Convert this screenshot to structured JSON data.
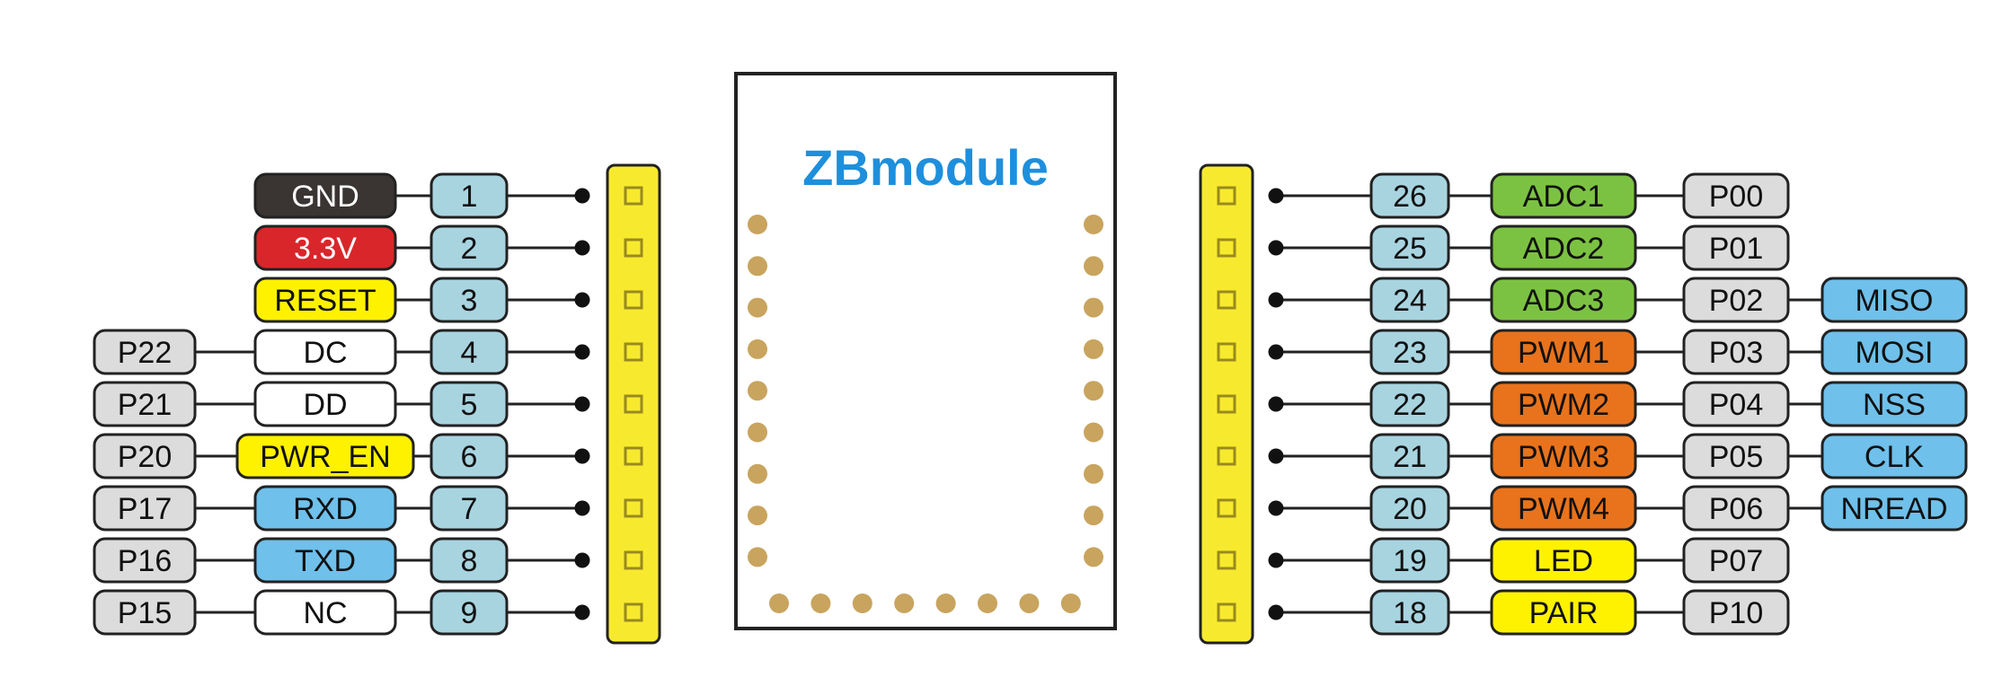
{
  "module": {
    "title": "ZBmodule",
    "title_color": "#1e8fdc"
  },
  "colors": {
    "gnd": "#3a3433",
    "power": "#d9262a",
    "yellow": "#fff200",
    "white": "#ffffff",
    "blue": "#6fc0ea",
    "pin": "#a8d4e0",
    "port": "#dcdcdc",
    "green": "#7cc242",
    "orange": "#e8731c",
    "pad": "#c8a45e",
    "header": "#f7ea2e"
  },
  "left_pins": [
    {
      "pin": "1",
      "func": "GND",
      "func_color": "gnd",
      "port": ""
    },
    {
      "pin": "2",
      "func": "3.3V",
      "func_color": "power",
      "port": ""
    },
    {
      "pin": "3",
      "func": "RESET",
      "func_color": "yellow",
      "port": ""
    },
    {
      "pin": "4",
      "func": "DC",
      "func_color": "white",
      "port": "P22"
    },
    {
      "pin": "5",
      "func": "DD",
      "func_color": "white",
      "port": "P21"
    },
    {
      "pin": "6",
      "func": "PWR_EN",
      "func_color": "yellow",
      "port": "P20"
    },
    {
      "pin": "7",
      "func": "RXD",
      "func_color": "blue",
      "port": "P17"
    },
    {
      "pin": "8",
      "func": "TXD",
      "func_color": "blue",
      "port": "P16"
    },
    {
      "pin": "9",
      "func": "NC",
      "func_color": "white",
      "port": "P15"
    }
  ],
  "right_pins": [
    {
      "pin": "26",
      "func": "ADC1",
      "func_color": "green",
      "port": "P00",
      "alt": ""
    },
    {
      "pin": "25",
      "func": "ADC2",
      "func_color": "green",
      "port": "P01",
      "alt": ""
    },
    {
      "pin": "24",
      "func": "ADC3",
      "func_color": "green",
      "port": "P02",
      "alt": "MISO"
    },
    {
      "pin": "23",
      "func": "PWM1",
      "func_color": "orange",
      "port": "P03",
      "alt": "MOSI"
    },
    {
      "pin": "22",
      "func": "PWM2",
      "func_color": "orange",
      "port": "P04",
      "alt": "NSS"
    },
    {
      "pin": "21",
      "func": "PWM3",
      "func_color": "orange",
      "port": "P05",
      "alt": "CLK"
    },
    {
      "pin": "20",
      "func": "PWM4",
      "func_color": "orange",
      "port": "P06",
      "alt": "NREAD"
    },
    {
      "pin": "19",
      "func": "LED",
      "func_color": "yellow",
      "port": "P07",
      "alt": ""
    },
    {
      "pin": "18",
      "func": "PAIR",
      "func_color": "yellow",
      "port": "P10",
      "alt": ""
    }
  ]
}
